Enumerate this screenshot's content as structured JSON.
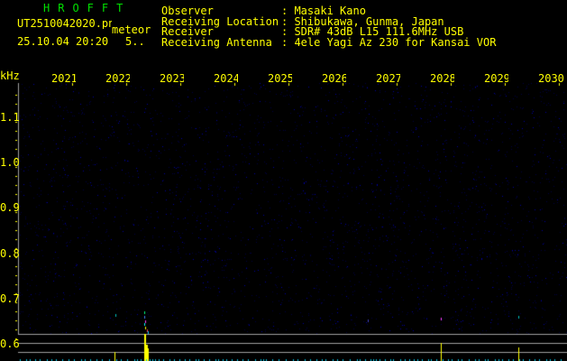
{
  "header": {
    "app_title": "HROFFT",
    "filename": "UT2510042020.png",
    "mode": "meteor",
    "datetime": "25.10.04 20:20",
    "count": "5..",
    "info": [
      {
        "label": "Observer",
        "value": ": Masaki Kano"
      },
      {
        "label": "Receiving Location",
        "value": ": Shibukawa, Gunma, Japan"
      },
      {
        "label": "Receiver",
        "value": ": SDR# 43dB L15 111.6MHz USB"
      },
      {
        "label": "Receiving Antenna",
        "value": ": 4ele Yagi Az 230 for Kansai VOR"
      }
    ]
  },
  "axis": {
    "unit": "kHz",
    "y_labels": [
      "1.1",
      "1.0",
      "0.9",
      "0.8",
      "0.7",
      "0.6"
    ],
    "x_labels": [
      "2021",
      "2022",
      "2023",
      "2024",
      "2025",
      "2026",
      "2027",
      "2028",
      "2029",
      "2030"
    ]
  },
  "colors": {
    "text": "#ffff00",
    "title": "#00e000",
    "grid": "#a0a0a0",
    "background": "#000000",
    "noise": "#000080"
  }
}
